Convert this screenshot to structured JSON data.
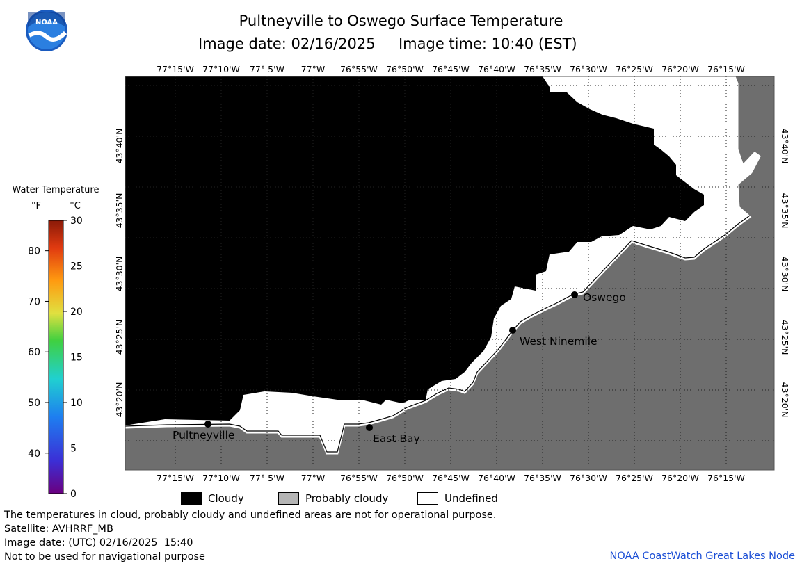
{
  "header": {
    "title": "Pultneyville to Oswego Surface Temperature",
    "image_date_label": "Image date: 02/16/2025",
    "image_time_label": "Image time: 10:40 (EST)"
  },
  "map": {
    "lon_ticks": [
      "77°15'W",
      "77°10'W",
      "77° 5'W",
      "77°W",
      "76°55'W",
      "76°50'W",
      "76°45'W",
      "76°40'W",
      "76°35'W",
      "76°30'W",
      "76°25'W",
      "76°20'W",
      "76°15'W"
    ],
    "lat_ticks": [
      "43°40'N",
      "43°35'N",
      "43°30'N",
      "43°25'N",
      "43°20'N"
    ],
    "places": [
      {
        "name": "Pultneyville"
      },
      {
        "name": "East Bay"
      },
      {
        "name": "West Ninemile"
      },
      {
        "name": "Oswego"
      }
    ],
    "colors": {
      "cloudy": "#000000",
      "land": "#6e6e6e",
      "undefined": "#ffffff",
      "grid": "#333333"
    }
  },
  "colorbar": {
    "title": "Water Temperature",
    "unit_f": "°F",
    "unit_c": "°C",
    "f_labels": [
      "80",
      "70",
      "60",
      "50",
      "40"
    ],
    "c_labels": [
      "30",
      "25",
      "20",
      "15",
      "10",
      "5",
      "0"
    ],
    "f_range": [
      32,
      86
    ],
    "c_range": [
      0,
      30
    ]
  },
  "legend": {
    "cloudy": "Cloudy",
    "probably_cloudy": "Probably cloudy",
    "undefined": "Undefined"
  },
  "footer": {
    "disclaimer": "The temperatures in cloud, probably cloudy and undefined areas are not for operational purpose.",
    "satellite": "Satellite: AVHRRF_MB",
    "utc_date": "Image date: (UTC) 02/16/2025  15:40",
    "nav_warning": "Not to be used for navigational purpose",
    "credit": "NOAA CoastWatch Great Lakes Node"
  }
}
